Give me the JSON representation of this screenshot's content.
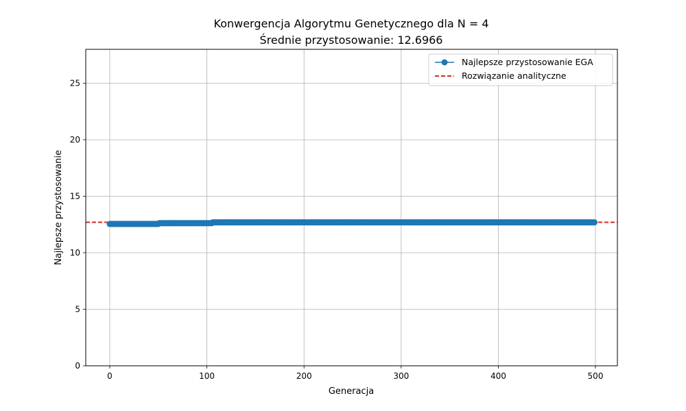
{
  "chart_data": {
    "type": "line",
    "title": "Konwergencja Algorytmu Genetycznego dla N = 4",
    "subtitle": "Średnie przystosowanie: 12.6966",
    "xlabel": "Generacja",
    "ylabel": "Najlepsze przystosowanie",
    "xlim": [
      -25,
      525
    ],
    "ylim": [
      0,
      28
    ],
    "xticks": [
      0,
      100,
      200,
      300,
      400,
      500
    ],
    "yticks": [
      0,
      5,
      10,
      15,
      20,
      25
    ],
    "grid": true,
    "legend_position": "top-right",
    "series": [
      {
        "name": "Najlepsze przystosowanie EGA",
        "color": "#1f77b4",
        "marker": "circle",
        "segments": [
          {
            "x_start": 0,
            "x_end": 50,
            "y": 12.55
          },
          {
            "x_start": 51,
            "x_end": 105,
            "y": 12.62
          },
          {
            "x_start": 106,
            "x_end": 499,
            "y": 12.69
          }
        ]
      }
    ],
    "reference_lines": [
      {
        "name": "Rozwiązanie analityczne",
        "y": 12.6966,
        "color": "#d62728",
        "style": "dashed"
      }
    ]
  }
}
